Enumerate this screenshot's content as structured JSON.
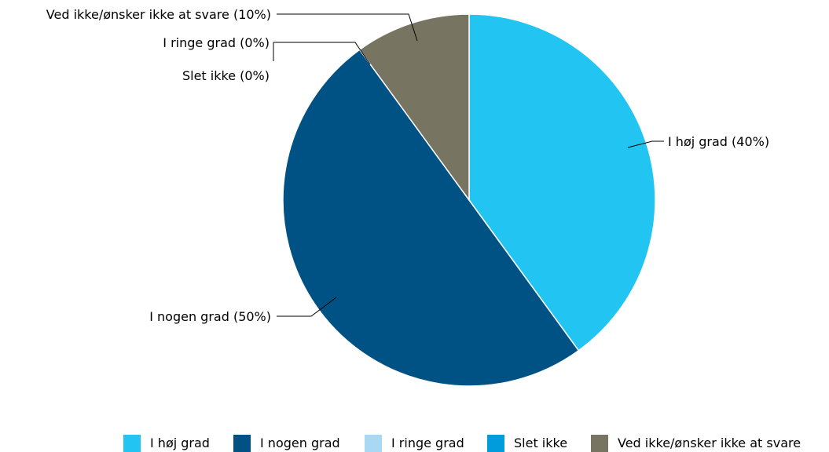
{
  "chart_data": {
    "type": "pie",
    "title": "",
    "start_angle_deg": 0,
    "direction": "clockwise",
    "legend_position": "bottom",
    "slices": [
      {
        "name": "I høj grad",
        "value": 40,
        "label": "I høj grad (40%)",
        "color": "#22c4f2"
      },
      {
        "name": "I nogen grad",
        "value": 50,
        "label": "I nogen grad (50%)",
        "color": "#005285"
      },
      {
        "name": "I ringe grad",
        "value": 0,
        "label": "I ringe grad (0%)",
        "color": "#a9d8f5"
      },
      {
        "name": "Slet ikke",
        "value": 0,
        "label": "Slet ikke (0%)",
        "color": "#009cdb"
      },
      {
        "name": "Ved ikke/ønsker ikke at svare",
        "value": 10,
        "label": "Ved ikke/ønsker ikke at svare (10%)",
        "color": "#787462"
      }
    ]
  }
}
